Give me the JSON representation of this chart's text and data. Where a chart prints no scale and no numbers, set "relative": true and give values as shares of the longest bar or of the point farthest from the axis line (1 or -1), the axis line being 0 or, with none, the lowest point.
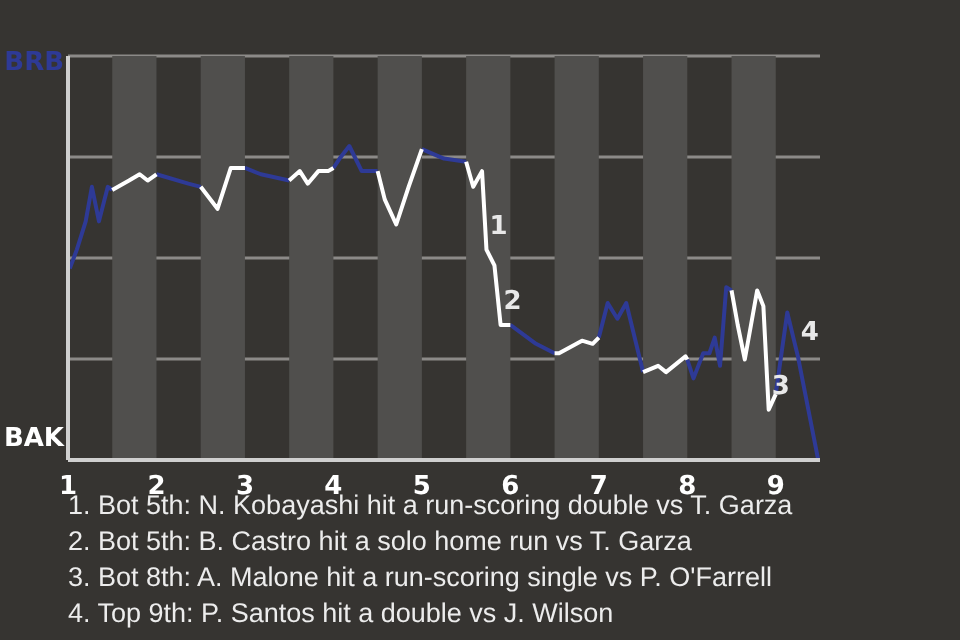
{
  "chart_data": {
    "type": "line",
    "relative": true,
    "xlim": [
      1,
      9.5
    ],
    "xticks": [
      1,
      2,
      3,
      4,
      5,
      6,
      7,
      8,
      9
    ],
    "grid": "y",
    "marker": "none",
    "line_style": "solid",
    "bands": [
      {
        "axis": "x",
        "from": 1.5,
        "to": 2,
        "color": "#504f4d"
      },
      {
        "axis": "x",
        "from": 2.5,
        "to": 3,
        "color": "#504f4d"
      },
      {
        "axis": "x",
        "from": 3.5,
        "to": 4,
        "color": "#504f4d"
      },
      {
        "axis": "x",
        "from": 4.5,
        "to": 5,
        "color": "#504f4d"
      },
      {
        "axis": "x",
        "from": 5.5,
        "to": 6,
        "color": "#504f4d"
      },
      {
        "axis": "x",
        "from": 6.5,
        "to": 7,
        "color": "#504f4d"
      },
      {
        "axis": "x",
        "from": 7.5,
        "to": 8,
        "color": "#504f4d"
      },
      {
        "axis": "x",
        "from": 8.5,
        "to": 9,
        "color": "#504f4d"
      }
    ],
    "series": [
      {
        "color": "#2e3a96",
        "x": [
          1.02,
          1.1,
          1.2,
          1.27,
          1.35,
          1.45,
          1.5,
          null,
          2,
          2.36,
          2.5,
          null,
          3,
          3.18,
          3.5,
          null,
          4,
          4.07,
          4.18,
          4.32,
          4.5,
          null,
          5,
          5.25,
          5.5,
          null,
          6,
          6.29,
          6.5,
          null,
          7,
          7.1,
          7.21,
          7.31,
          7.5,
          null,
          8,
          8.07,
          8.18,
          8.25,
          8.31,
          8.37,
          8.44,
          8.5,
          null,
          9,
          9.13,
          9.25,
          9.48
        ],
        "values": [
          0.61,
          0.67,
          0.76,
          0.87,
          0.76,
          0.87,
          0.86,
          null,
          0.91,
          0.88,
          0.87,
          null,
          0.93,
          0.91,
          0.89,
          null,
          0.93,
          0.96,
          1,
          0.92,
          0.92,
          null,
          0.99,
          0.96,
          0.95,
          null,
          0.43,
          0.37,
          0.34,
          null,
          0.39,
          0.5,
          0.45,
          0.5,
          0.28,
          null,
          0.32,
          0.26,
          0.34,
          0.34,
          0.39,
          0.3,
          0.55,
          0.54,
          null,
          0.21,
          0.47,
          0.33,
          0
        ]
      },
      {
        "color": "#ffffff",
        "x": [
          1.5,
          1.69,
          1.81,
          1.9,
          2,
          null,
          2.5,
          2.69,
          2.84,
          3,
          null,
          3.5,
          3.62,
          3.71,
          3.83,
          3.94,
          4,
          null,
          4.5,
          4.58,
          4.71,
          4.85,
          5,
          null,
          5.5,
          5.58,
          5.68,
          5.73,
          5.82,
          5.89,
          5.97,
          6,
          null,
          6.5,
          6.55,
          6.81,
          6.93,
          7,
          null,
          7.5,
          7.67,
          7.76,
          7.98,
          8,
          null,
          8.5,
          8.57,
          8.65,
          8.72,
          8.79,
          8.86,
          8.92,
          9
        ],
        "values": [
          0.86,
          0.89,
          0.91,
          0.89,
          0.91,
          null,
          0.87,
          0.8,
          0.93,
          0.93,
          null,
          0.89,
          0.92,
          0.88,
          0.92,
          0.92,
          0.93,
          null,
          0.92,
          0.83,
          0.75,
          0.87,
          0.99,
          null,
          0.95,
          0.87,
          0.92,
          0.67,
          0.62,
          0.43,
          0.43,
          0.43,
          null,
          0.34,
          0.34,
          0.38,
          0.37,
          0.39,
          null,
          0.28,
          0.3,
          0.28,
          0.33,
          0.32,
          null,
          0.54,
          0.43,
          0.32,
          0.43,
          0.54,
          0.49,
          0.16,
          0.21
        ]
      }
    ],
    "annotations": [
      "BRB",
      "BAK",
      {
        "text": "1",
        "x": 5.73,
        "y": 0.67
      },
      {
        "text": "2",
        "x": 5.89,
        "y": 0.43
      },
      {
        "text": "3",
        "x": 8.92,
        "y": 0.16
      },
      {
        "text": "4",
        "x": 9.25,
        "y": 0.33
      },
      "1. Bot 5th: N. Kobayashi hit a run-scoring double vs T. Garza",
      "2. Bot 5th: B. Castro hit a solo home run vs T. Garza",
      "3. Bot 8th: A. Malone hit a run-scoring single vs P. O'Farrell",
      "4. Top 9th: P. Santos hit a double vs J. Wilson"
    ]
  }
}
